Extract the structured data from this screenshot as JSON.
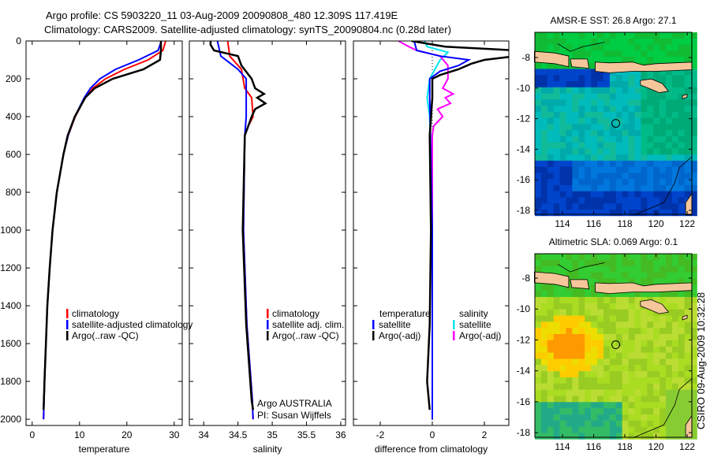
{
  "title_line1": "Argo profile: CS 5903220_11 03-Aug-2009 20090808_480 12.309S 117.419E",
  "title_line2": "Climatology: CARS2009. Satellite-adjusted climatology: synTS_20090804.nc (0.28d later)",
  "side_stamp": "CSIRO 09-Aug-2009 10:32:28",
  "colors": {
    "climatology": "#ff0000",
    "satellite": "#0000ff",
    "argo": "#000000",
    "sal_satellite": "#00e5ee",
    "sal_argo": "#ff00ff",
    "land": "#f5c69a"
  },
  "chart_data": [
    {
      "type": "line",
      "xlabel": "temperature",
      "ylabel": "depth",
      "xlim": [
        -1.3,
        31.7
      ],
      "ylim": [
        2033,
        0
      ],
      "xticks": [
        "0",
        "10",
        "20",
        "30"
      ],
      "xtickvals": [
        0,
        10,
        20,
        30
      ],
      "yticks": [
        "0",
        "200",
        "400",
        "600",
        "800",
        "1000",
        "1200",
        "1400",
        "1600",
        "1800",
        "2000"
      ],
      "legend": [
        "climatology",
        "satellite-adjusted climatology",
        "Argo(..raw -QC)"
      ],
      "series": [
        {
          "name": "climatology",
          "color": "#ff0000",
          "depth": [
            0,
            50,
            100,
            150,
            200,
            250,
            300,
            400,
            500,
            600,
            800,
            1000,
            1200,
            1400,
            1600,
            1800,
            2000
          ],
          "values": [
            28.2,
            27.6,
            24.5,
            19.5,
            15.5,
            12.8,
            11.2,
            9.1,
            7.6,
            6.6,
            5.2,
            4.3,
            3.7,
            3.2,
            2.9,
            2.6,
            2.4
          ]
        },
        {
          "name": "satellite-adjusted climatology",
          "color": "#0000ff",
          "depth": [
            0,
            50,
            100,
            150,
            200,
            250,
            300,
            400,
            500,
            600,
            800,
            1000,
            1200,
            1400,
            1600,
            1800,
            2000
          ],
          "values": [
            27.3,
            26.6,
            22.5,
            17.6,
            14.3,
            12.3,
            11.0,
            9.0,
            7.6,
            6.6,
            5.2,
            4.3,
            3.7,
            3.2,
            2.9,
            2.6,
            2.4
          ]
        },
        {
          "name": "Argo(..raw -QC)",
          "color": "#000000",
          "depth": [
            0,
            50,
            100,
            150,
            200,
            250,
            300,
            400,
            500,
            600,
            800,
            1000,
            1200,
            1400,
            1600,
            1800,
            1950
          ],
          "values": [
            27.2,
            27.2,
            27.0,
            23.5,
            17.0,
            13.2,
            11.2,
            9.0,
            7.5,
            6.6,
            5.2,
            4.3,
            3.7,
            3.2,
            2.9,
            2.6,
            2.4
          ]
        }
      ]
    },
    {
      "type": "line",
      "xlabel": "salinity",
      "ylabel": "depth",
      "xlim": [
        33.79,
        36.07
      ],
      "ylim": [
        2033,
        0
      ],
      "xticks": [
        "34",
        "34.5",
        "35",
        "35.5",
        "36"
      ],
      "xtickvals": [
        34,
        34.5,
        35,
        35.5,
        36
      ],
      "legend": [
        "climatology",
        "satellite adj. clim.",
        "Argo(..raw -QC)"
      ],
      "annotation": [
        "Argo AUSTRALIA",
        "PI: Susan Wijffels"
      ],
      "series": [
        {
          "name": "climatology",
          "color": "#ff0000",
          "depth": [
            0,
            80,
            150,
            250,
            300,
            400,
            450,
            500,
            1000,
            1500,
            1900,
            2000
          ],
          "values": [
            34.35,
            34.38,
            34.55,
            34.6,
            34.7,
            34.72,
            34.65,
            34.6,
            34.58,
            34.63,
            34.71,
            34.72
          ]
        },
        {
          "name": "satellite adj. clim.",
          "color": "#0000ff",
          "depth": [
            0,
            80,
            150,
            200,
            300,
            400,
            500,
            1000,
            1500,
            1900,
            2000
          ],
          "values": [
            34.2,
            34.25,
            34.5,
            34.62,
            34.62,
            34.62,
            34.6,
            34.58,
            34.63,
            34.71,
            34.72
          ]
        },
        {
          "name": "Argo(..raw -QC)",
          "color": "#000000",
          "depth": [
            0,
            20,
            50,
            80,
            130,
            200,
            250,
            280,
            300,
            330,
            360,
            400,
            450,
            500,
            1000,
            1500,
            1900,
            1950
          ],
          "values": [
            34.1,
            34.1,
            34.15,
            34.5,
            34.55,
            34.7,
            34.75,
            34.88,
            34.78,
            34.9,
            34.75,
            34.7,
            34.65,
            34.6,
            34.57,
            34.62,
            34.7,
            34.72
          ]
        }
      ]
    },
    {
      "type": "line",
      "xlabel": "difference from climatology",
      "ylabel": "depth",
      "xlim": [
        -3.03,
        2.94
      ],
      "ylim": [
        2033,
        0
      ],
      "xticks": [
        "-2",
        "0",
        "2"
      ],
      "xtickvals": [
        -2,
        0,
        2
      ],
      "legend_headers": [
        "temperature",
        "salinity"
      ],
      "legend": [
        "satellite",
        "Argo(-adj)",
        "satellite",
        "Argo(-adj)"
      ],
      "series": [
        {
          "name": "temperature satellite",
          "color": "#0000ff",
          "depth": [
            0,
            50,
            80,
            100,
            130,
            160,
            200,
            300,
            1000,
            2000
          ],
          "values": [
            -0.7,
            -0.6,
            0.3,
            1.4,
            1.0,
            0.3,
            -0.1,
            -0.1,
            0,
            0
          ]
        },
        {
          "name": "temperature Argo(-adj)",
          "color": "#000000",
          "depth": [
            0,
            30,
            50,
            80,
            100,
            120,
            150,
            180,
            200,
            300,
            500,
            1000,
            1500,
            1800,
            1950
          ],
          "values": [
            -0.8,
            0.5,
            3.2,
            3.2,
            2.0,
            1.5,
            1.0,
            0.3,
            0,
            0,
            -0.1,
            -0.05,
            -0.1,
            -0.2,
            -0.1
          ]
        },
        {
          "name": "salinity satellite",
          "color": "#00e5ee",
          "depth": [
            0,
            30,
            60,
            100,
            150,
            200,
            300,
            400,
            1000,
            2000
          ],
          "values": [
            -0.3,
            -0.2,
            0.6,
            0.3,
            0.1,
            -0.1,
            -0.2,
            -0.1,
            0,
            0
          ]
        },
        {
          "name": "salinity Argo(-adj)",
          "color": "#ff00ff",
          "depth": [
            0,
            30,
            50,
            80,
            130,
            200,
            250,
            280,
            300,
            330,
            360,
            400,
            450,
            500,
            1000,
            1950
          ],
          "values": [
            -1.3,
            -0.9,
            -0.6,
            0.3,
            0.6,
            0.6,
            0.4,
            0.8,
            0.5,
            0.7,
            0.2,
            0.4,
            0.05,
            0,
            0,
            0
          ]
        }
      ]
    }
  ],
  "maps": [
    {
      "title": "AMSR-E SST: 26.8 Argo: 27.1",
      "kind": "sst",
      "xticks": [
        "114",
        "116",
        "118",
        "120",
        "122"
      ],
      "yticks": [
        "-8",
        "-10",
        "-12",
        "-14",
        "-16",
        "-18"
      ],
      "argo_lon": 117.42,
      "argo_lat": -12.31
    },
    {
      "title": "Altimetric SLA: 0.069 Argo: 0.1",
      "kind": "sla",
      "xticks": [
        "114",
        "116",
        "118",
        "120",
        "122"
      ],
      "yticks": [
        "-8",
        "-10",
        "-12",
        "-14",
        "-16",
        "-18"
      ],
      "argo_lon": 117.42,
      "argo_lat": -12.31
    }
  ]
}
